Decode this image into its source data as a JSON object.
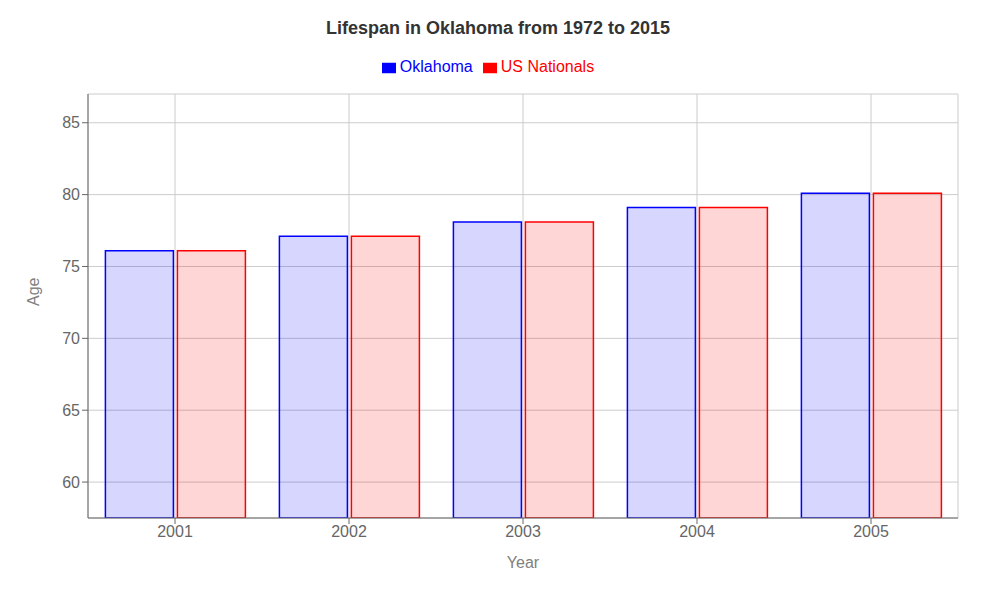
{
  "chart_data": {
    "type": "bar",
    "title": "Lifespan in Oklahoma from 1972 to 2015",
    "xlabel": "Year",
    "ylabel": "Age",
    "categories": [
      "2001",
      "2002",
      "2003",
      "2004",
      "2005"
    ],
    "series": [
      {
        "name": "Oklahoma",
        "color": "#0000ff",
        "values": [
          76.1,
          77.1,
          78.1,
          79.1,
          80.1
        ]
      },
      {
        "name": "US Nationals",
        "color": "#ff0000",
        "values": [
          76.1,
          77.1,
          78.1,
          79.1,
          80.1
        ]
      }
    ],
    "ylim": [
      57.5,
      87
    ],
    "yticks": [
      60,
      65,
      70,
      75,
      80,
      85
    ],
    "grid": true
  }
}
